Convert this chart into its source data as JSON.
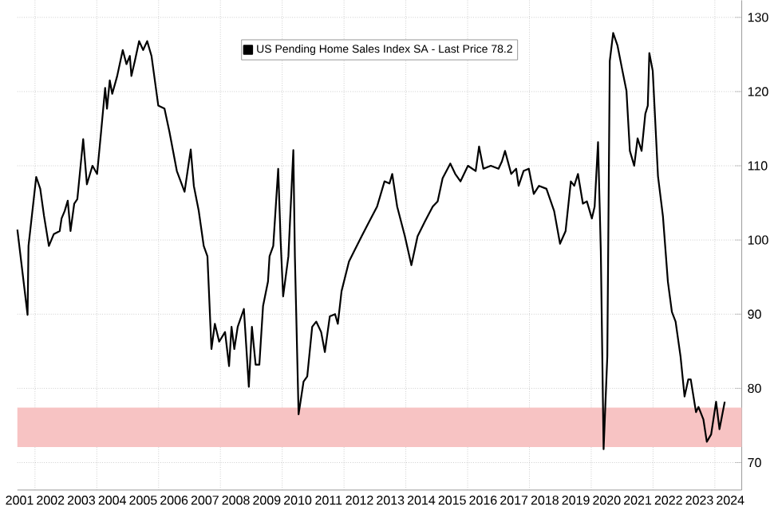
{
  "chart_data": {
    "type": "line",
    "x": [
      2001.43,
      2001.76,
      2001.79,
      2002.04,
      2002.17,
      2002.29,
      2002.45,
      2002.61,
      2002.8,
      2002.86,
      2002.96,
      2003.06,
      2003.15,
      2003.27,
      2003.37,
      2003.56,
      2003.68,
      2003.86,
      2004.01,
      2004.14,
      2004.27,
      2004.33,
      2004.42,
      2004.5,
      2004.66,
      2004.84,
      2004.96,
      2005.07,
      2005.12,
      2005.23,
      2005.37,
      2005.5,
      2005.63,
      2005.77,
      2005.99,
      2006.19,
      2006.35,
      2006.59,
      2006.84,
      2007.04,
      2007.14,
      2007.3,
      2007.46,
      2007.58,
      2007.71,
      2007.82,
      2007.96,
      2008.15,
      2008.28,
      2008.36,
      2008.45,
      2008.56,
      2008.76,
      2008.92,
      2009.02,
      2009.14,
      2009.26,
      2009.38,
      2009.54,
      2009.59,
      2009.71,
      2009.87,
      2009.95,
      2010.03,
      2010.2,
      2010.36,
      2010.41,
      2010.53,
      2010.69,
      2010.81,
      2010.97,
      2011.1,
      2011.26,
      2011.38,
      2011.54,
      2011.71,
      2011.8,
      2011.92,
      2012.16,
      2012.33,
      2012.57,
      2012.82,
      2013.07,
      2013.31,
      2013.47,
      2013.56,
      2013.72,
      2013.97,
      2014.18,
      2014.38,
      2014.62,
      2014.87,
      2015.03,
      2015.19,
      2015.44,
      2015.6,
      2015.77,
      2016.01,
      2016.26,
      2016.37,
      2016.51,
      2016.75,
      2017.0,
      2017.11,
      2017.21,
      2017.41,
      2017.57,
      2017.65,
      2017.81,
      2017.98,
      2018.14,
      2018.31,
      2018.55,
      2018.8,
      2018.99,
      2019.17,
      2019.34,
      2019.45,
      2019.57,
      2019.73,
      2019.86,
      2020.02,
      2020.11,
      2020.22,
      2020.31,
      2020.4,
      2020.52,
      2020.6,
      2020.71,
      2020.85,
      2021.01,
      2021.14,
      2021.25,
      2021.39,
      2021.5,
      2021.63,
      2021.75,
      2021.83,
      2021.88,
      2021.99,
      2022.16,
      2022.32,
      2022.48,
      2022.61,
      2022.73,
      2022.89,
      2023.02,
      2023.14,
      2023.22,
      2023.39,
      2023.47,
      2023.63,
      2023.74,
      2023.88,
      2024.04,
      2024.15,
      2024.32
    ],
    "series": [
      {
        "name": "US Pending Home Sales Index SA - Last Price 78.2",
        "color": "#000000",
        "values": [
          101.4,
          89.9,
          99.2,
          108.5,
          106.9,
          103.3,
          99.2,
          100.8,
          101.2,
          102.9,
          103.9,
          105.3,
          101.2,
          104.9,
          105.5,
          113.6,
          107.5,
          110.0,
          108.9,
          114.6,
          120.5,
          117.7,
          121.5,
          119.7,
          122.1,
          125.6,
          123.7,
          124.8,
          122.1,
          124.1,
          126.8,
          125.6,
          126.8,
          124.8,
          118.1,
          117.7,
          114.6,
          109.3,
          106.5,
          112.2,
          107.3,
          103.9,
          99.2,
          97.8,
          85.3,
          88.7,
          86.3,
          87.6,
          83.0,
          88.3,
          85.3,
          88.3,
          90.7,
          80.2,
          88.3,
          83.2,
          83.2,
          91.1,
          94.4,
          97.8,
          99.2,
          109.6,
          99.8,
          92.4,
          97.8,
          112.1,
          97.8,
          76.5,
          80.9,
          81.6,
          88.3,
          89.0,
          87.6,
          84.9,
          89.7,
          90.0,
          88.7,
          93.1,
          97.1,
          98.5,
          100.5,
          102.5,
          104.5,
          107.9,
          107.6,
          108.9,
          104.5,
          100.5,
          96.6,
          100.5,
          102.5,
          104.5,
          105.2,
          108.3,
          110.3,
          108.9,
          107.9,
          110.0,
          109.3,
          112.6,
          109.6,
          110.0,
          109.6,
          110.6,
          112.0,
          108.9,
          109.6,
          107.3,
          109.3,
          109.6,
          106.2,
          107.3,
          106.9,
          103.9,
          99.5,
          101.2,
          107.9,
          107.3,
          108.9,
          104.9,
          105.2,
          102.9,
          104.5,
          113.2,
          98.5,
          71.8,
          84.3,
          124.1,
          127.9,
          126.2,
          122.8,
          120.1,
          112.0,
          110.0,
          113.7,
          112.0,
          117.0,
          118.1,
          125.2,
          122.8,
          108.6,
          103.2,
          94.4,
          90.3,
          89.0,
          84.3,
          78.9,
          81.2,
          81.2,
          76.8,
          77.5,
          75.8,
          72.8,
          73.8,
          78.2,
          74.5,
          78.2
        ]
      }
    ],
    "xlim": [
      2001.43,
      2024.87
    ],
    "ylim": [
      66.3,
      132.3
    ],
    "xticks": [
      {
        "value": 2001.5,
        "label": "2001"
      },
      {
        "value": 2002.5,
        "label": "2002"
      },
      {
        "value": 2003.5,
        "label": "2003"
      },
      {
        "value": 2004.5,
        "label": "2004"
      },
      {
        "value": 2005.5,
        "label": "2005"
      },
      {
        "value": 2006.5,
        "label": "2006"
      },
      {
        "value": 2007.5,
        "label": "2007"
      },
      {
        "value": 2008.5,
        "label": "2008"
      },
      {
        "value": 2009.5,
        "label": "2009"
      },
      {
        "value": 2010.5,
        "label": "2010"
      },
      {
        "value": 2011.5,
        "label": "2011"
      },
      {
        "value": 2012.5,
        "label": "2012"
      },
      {
        "value": 2013.5,
        "label": "2013"
      },
      {
        "value": 2014.5,
        "label": "2014"
      },
      {
        "value": 2015.5,
        "label": "2015"
      },
      {
        "value": 2016.5,
        "label": "2016"
      },
      {
        "value": 2017.5,
        "label": "2017"
      },
      {
        "value": 2018.5,
        "label": "2018"
      },
      {
        "value": 2019.5,
        "label": "2019"
      },
      {
        "value": 2020.5,
        "label": "2020"
      },
      {
        "value": 2021.5,
        "label": "2021"
      },
      {
        "value": 2022.5,
        "label": "2022"
      },
      {
        "value": 2023.5,
        "label": "2023"
      },
      {
        "value": 2024.5,
        "label": "2024"
      },
      {
        "value": 2002,
        "label": null
      },
      {
        "value": 2004,
        "label": null
      },
      {
        "value": 2006,
        "label": null
      },
      {
        "value": 2008,
        "label": null
      },
      {
        "value": 2010,
        "label": null
      },
      {
        "value": 2012,
        "label": null
      },
      {
        "value": 2014,
        "label": null
      },
      {
        "value": 2016,
        "label": null
      },
      {
        "value": 2018,
        "label": null
      },
      {
        "value": 2020,
        "label": null
      },
      {
        "value": 2022,
        "label": null
      },
      {
        "value": 2024,
        "label": null
      }
    ],
    "yticks": [
      70,
      80,
      90,
      100,
      110,
      120,
      130
    ],
    "bands": [
      {
        "axis": "y",
        "from": 72.1,
        "to": 77.4,
        "color": "#f7c3c3"
      }
    ],
    "grid": true,
    "legend": "top",
    "marker": "none",
    "line_style": "solid"
  }
}
